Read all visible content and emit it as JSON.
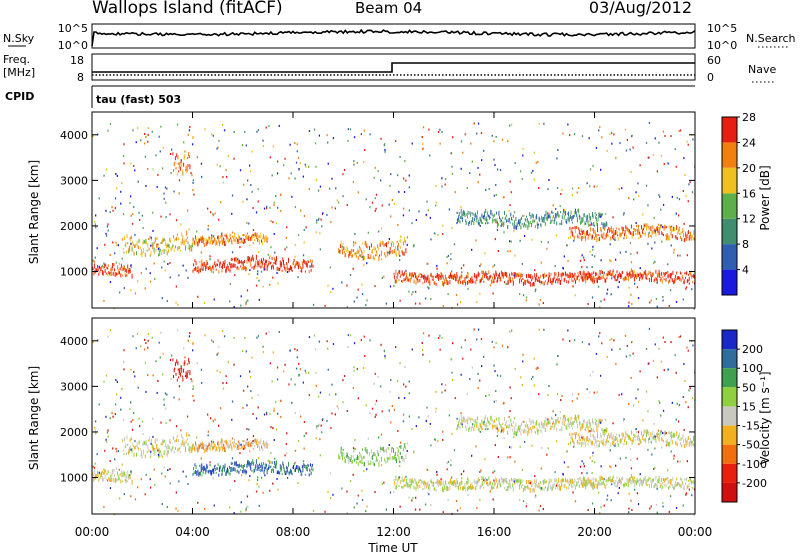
{
  "header": {
    "station": "Wallops Island (fitACF)",
    "beam": "Beam 04",
    "date": "03/Aug/2012"
  },
  "strip": {
    "nsky_label": "N.Sky",
    "nsky_ticks": [
      "10^5",
      "10^0"
    ],
    "nsearch_label": "N.Search",
    "nsearch_ticks": [
      "10^5",
      "10^0"
    ],
    "freq_label": "Freq.",
    "freq_unit": "[MHz]",
    "freq_ticks": [
      "18",
      "8"
    ],
    "nave_label": "Nave",
    "nave_ticks": [
      "60",
      "0"
    ],
    "cpid_label": "CPID",
    "cpid_text": "tau (fast) 503"
  },
  "chart_data": [
    {
      "type": "heatmap",
      "name": "power",
      "ylabel": "Slant Range [km]",
      "yticks": [
        "1000",
        "2000",
        "3000",
        "4000"
      ],
      "ylim": [
        200,
        4500
      ],
      "xlim": [
        0,
        24
      ],
      "colorbar_label": "Power [dB]",
      "colorbar_ticks": [
        "4",
        "8",
        "12",
        "16",
        "20",
        "24",
        "28"
      ],
      "colors": [
        "#1a1adf",
        "#2f5fb0",
        "#3f8e70",
        "#5cb04a",
        "#f0c020",
        "#f08010",
        "#e62010"
      ],
      "echo_bands": [
        {
          "t0": 0.0,
          "t1": 1.6,
          "r": 1000,
          "w": 120,
          "level": 6
        },
        {
          "t0": 1.2,
          "t1": 4.0,
          "r": 1600,
          "w": 200,
          "level": 4
        },
        {
          "t0": 3.2,
          "t1": 3.9,
          "r": 3300,
          "w": 250,
          "level": 5
        },
        {
          "t0": 4.0,
          "t1": 8.8,
          "r": 1150,
          "w": 130,
          "level": 6
        },
        {
          "t0": 4.0,
          "t1": 7.0,
          "r": 1700,
          "w": 100,
          "level": 5
        },
        {
          "t0": 9.8,
          "t1": 12.5,
          "r": 1500,
          "w": 180,
          "level": 5
        },
        {
          "t0": 12.0,
          "t1": 20.0,
          "r": 850,
          "w": 110,
          "level": 6
        },
        {
          "t0": 14.5,
          "t1": 20.5,
          "r": 2150,
          "w": 150,
          "level": 2
        },
        {
          "t0": 19.0,
          "t1": 24.0,
          "r": 1850,
          "w": 130,
          "level": 5
        },
        {
          "t0": 19.5,
          "t1": 24.0,
          "r": 900,
          "w": 110,
          "level": 6
        }
      ]
    },
    {
      "type": "heatmap",
      "name": "velocity",
      "xlabel": "Time UT",
      "xticks": [
        "00:00",
        "04:00",
        "08:00",
        "12:00",
        "16:00",
        "20:00",
        "00:00"
      ],
      "xlim": [
        0,
        24
      ],
      "ylabel": "Slant Range [km]",
      "yticks": [
        "1000",
        "2000",
        "3000",
        "4000"
      ],
      "ylim": [
        200,
        4500
      ],
      "colorbar_label": "Velocity [m s⁻¹]",
      "colorbar_ticks": [
        "200",
        "100",
        "50",
        "15",
        "-15",
        "-50",
        "-100",
        "-200"
      ],
      "colors": [
        "#1a28c8",
        "#2f6e9a",
        "#3fa050",
        "#8fd040",
        "#c8c8c0",
        "#f0b020",
        "#f07010",
        "#e82010",
        "#d01010"
      ],
      "echo_bands": [
        {
          "t0": 0.0,
          "t1": 1.6,
          "r": 1000,
          "w": 120,
          "level": 4
        },
        {
          "t0": 1.2,
          "t1": 4.0,
          "r": 1700,
          "w": 200,
          "level": 4
        },
        {
          "t0": 3.2,
          "t1": 3.9,
          "r": 3300,
          "w": 250,
          "level": 8
        },
        {
          "t0": 4.0,
          "t1": 8.8,
          "r": 1200,
          "w": 120,
          "level": 1
        },
        {
          "t0": 4.0,
          "t1": 7.0,
          "r": 1700,
          "w": 100,
          "level": 5
        },
        {
          "t0": 9.8,
          "t1": 12.5,
          "r": 1500,
          "w": 180,
          "level": 3
        },
        {
          "t0": 12.0,
          "t1": 20.0,
          "r": 850,
          "w": 110,
          "level": 4
        },
        {
          "t0": 14.5,
          "t1": 20.5,
          "r": 2150,
          "w": 150,
          "level": 4
        },
        {
          "t0": 19.0,
          "t1": 24.0,
          "r": 1850,
          "w": 130,
          "level": 4
        },
        {
          "t0": 19.5,
          "t1": 24.0,
          "r": 900,
          "w": 110,
          "level": 4
        }
      ]
    }
  ]
}
